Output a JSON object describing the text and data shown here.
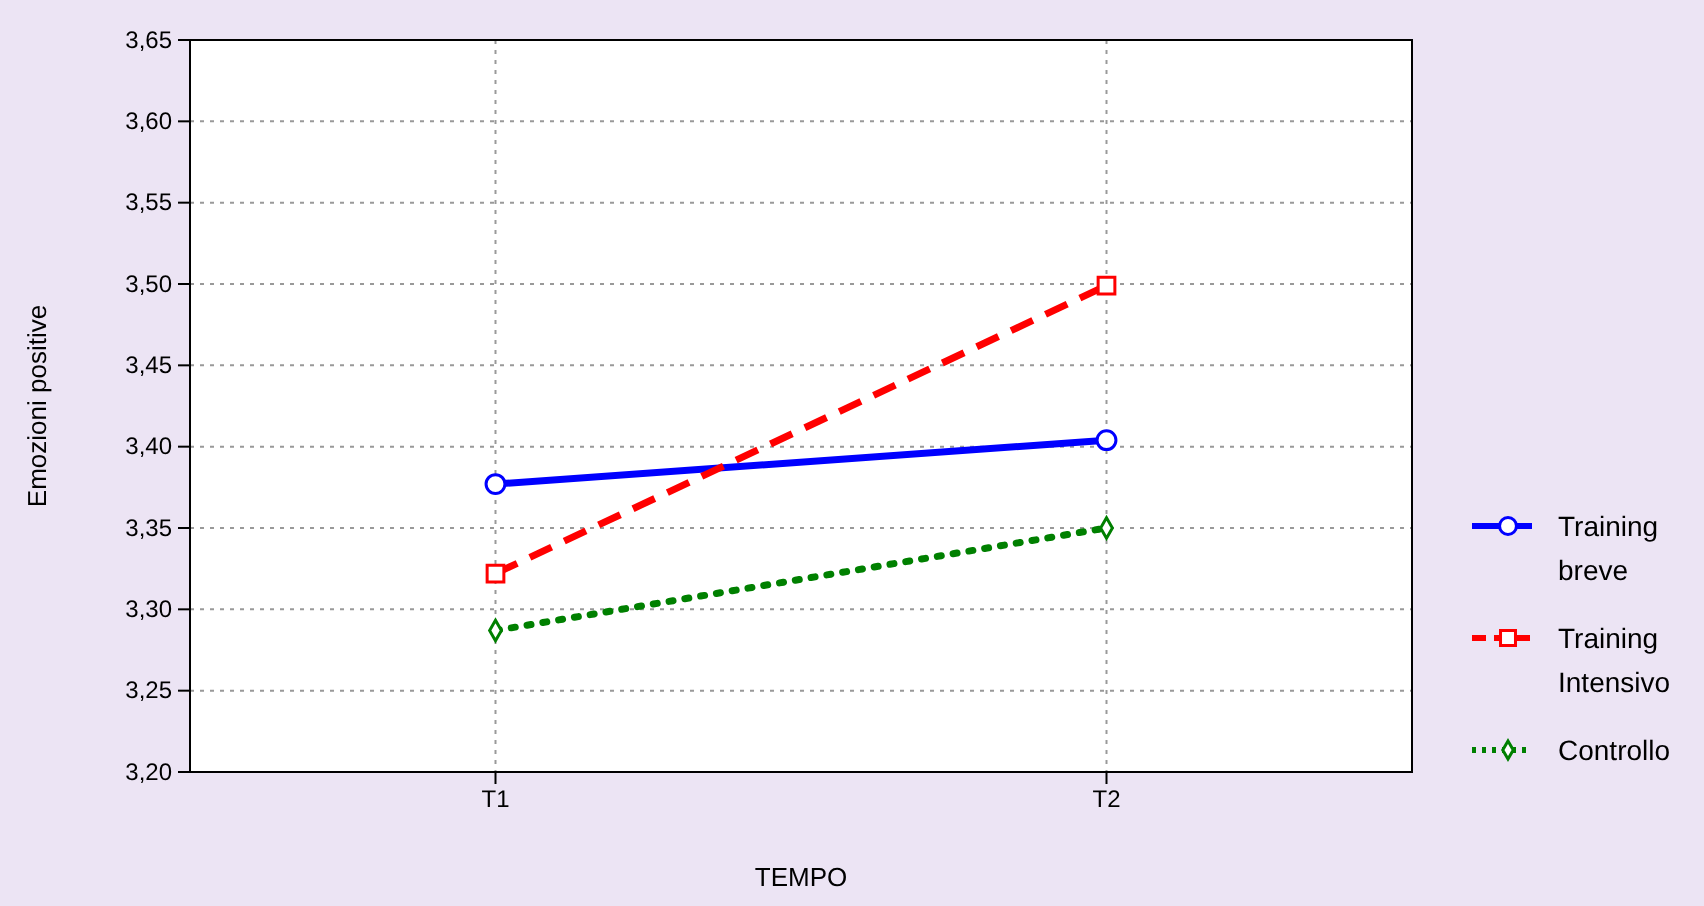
{
  "chart_data": {
    "type": "line",
    "xlabel": "TEMPO",
    "ylabel": "Emozioni positive",
    "categories": [
      "T1",
      "T2"
    ],
    "ylim": [
      3.2,
      3.65
    ],
    "yticks": [
      {
        "value": 3.2,
        "label": "3,20"
      },
      {
        "value": 3.25,
        "label": "3,25"
      },
      {
        "value": 3.3,
        "label": "3,30"
      },
      {
        "value": 3.35,
        "label": "3,35"
      },
      {
        "value": 3.4,
        "label": "3,40"
      },
      {
        "value": 3.45,
        "label": "3,45"
      },
      {
        "value": 3.5,
        "label": "3,50"
      },
      {
        "value": 3.55,
        "label": "3,55"
      },
      {
        "value": 3.6,
        "label": "3,60"
      },
      {
        "value": 3.65,
        "label": "3,65"
      }
    ],
    "grid": true,
    "legend": "right",
    "series": [
      {
        "name": "Training breve",
        "color": "#0000ff",
        "values": [
          3.377,
          3.404
        ],
        "marker": "circle",
        "line_style": "solid"
      },
      {
        "name": "Training Intensivo",
        "color": "#ff0000",
        "values": [
          3.322,
          3.499
        ],
        "marker": "square",
        "line_style": "dashed"
      },
      {
        "name": "Controllo",
        "color": "#008000",
        "values": [
          3.287,
          3.35
        ],
        "marker": "diamond",
        "line_style": "dotted"
      }
    ]
  }
}
